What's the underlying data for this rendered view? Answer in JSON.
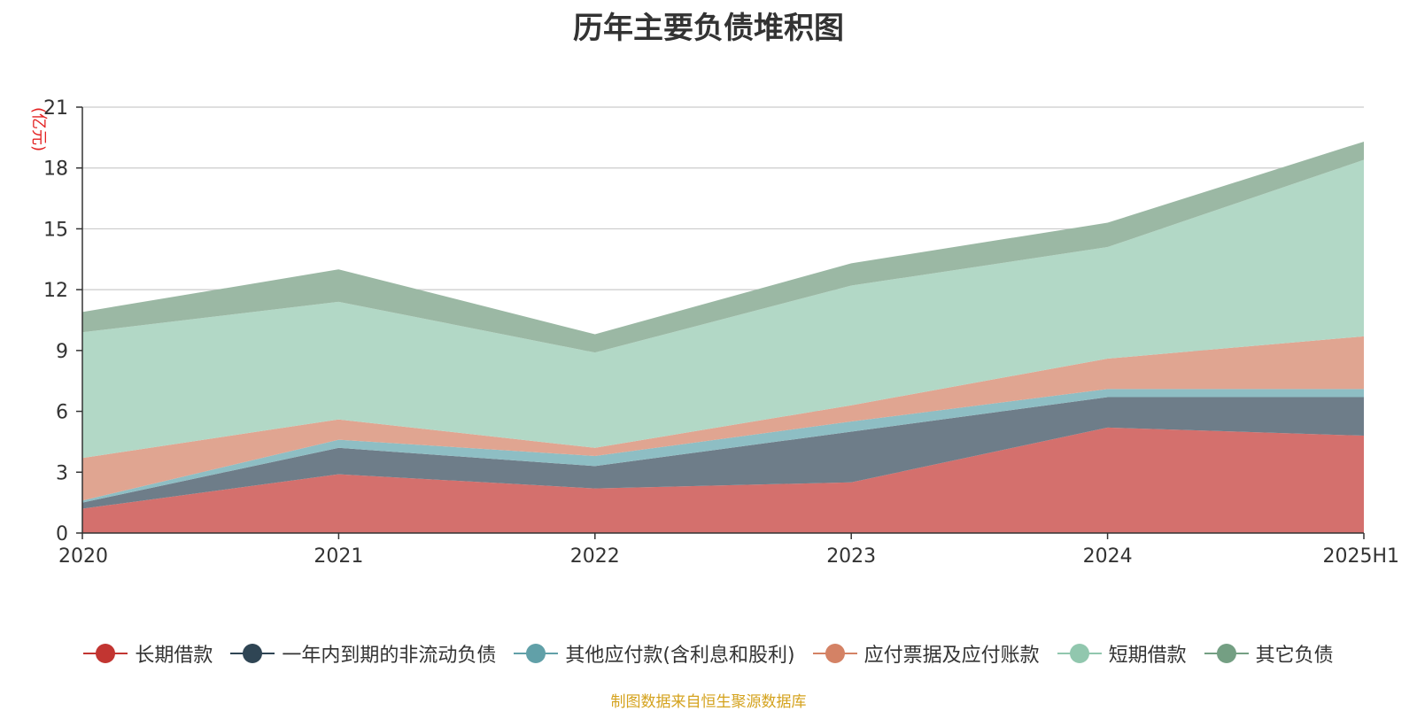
{
  "chart_data": {
    "type": "area",
    "title": "历年主要负债堆积图",
    "unit_label": "(亿元)",
    "stacked": true,
    "categories": [
      "2020",
      "2021",
      "2022",
      "2023",
      "2024",
      "2025H1"
    ],
    "y_ticks": [
      "0",
      "3",
      "6",
      "9",
      "12",
      "15",
      "18",
      "21"
    ],
    "ylim": [
      0,
      21
    ],
    "grid": true,
    "legend_position": "bottom",
    "series": [
      {
        "name": "长期借款",
        "color": "#c23531",
        "fill": "#d4706d",
        "values": [
          1.2,
          2.9,
          2.2,
          2.5,
          5.2,
          4.8
        ]
      },
      {
        "name": "一年内到期的非流动负债",
        "color": "#2f4554",
        "fill": "#6e7d89",
        "values": [
          0.3,
          1.3,
          1.1,
          2.5,
          1.5,
          1.9
        ]
      },
      {
        "name": "其他应付款(含利息和股利)",
        "color": "#61a0a8",
        "fill": "#8ebec4",
        "values": [
          0.1,
          0.4,
          0.5,
          0.5,
          0.4,
          0.4
        ]
      },
      {
        "name": "应付票据及应付账款",
        "color": "#d48265",
        "fill": "#e0a591",
        "values": [
          2.1,
          1.0,
          0.4,
          0.8,
          1.5,
          2.6
        ]
      },
      {
        "name": "短期借款",
        "color": "#91c7ae",
        "fill": "#b2d8c6",
        "values": [
          6.2,
          5.8,
          4.7,
          5.9,
          5.5,
          8.7
        ]
      },
      {
        "name": "其它负债",
        "color": "#749f83",
        "fill": "#9bb8a4",
        "values": [
          1.0,
          1.6,
          0.9,
          1.1,
          1.2,
          0.9
        ]
      }
    ]
  },
  "footer": {
    "source_note": "制图数据来自恒生聚源数据库"
  }
}
